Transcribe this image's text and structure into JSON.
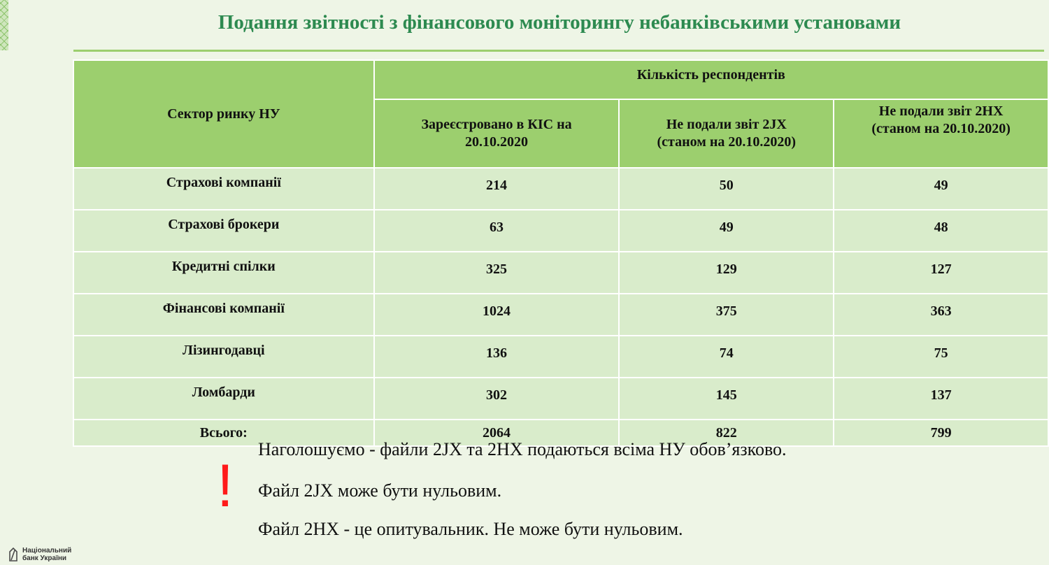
{
  "title": "Подання звітності з фінансового моніторингу небанківськими установами",
  "table": {
    "header": {
      "sector": "Сектор ринку НУ",
      "group": "Кількість респондентів",
      "col1_line1": "Зареєстровано в КІС на",
      "col1_line2": "20.10.2020",
      "col2_line1": "Не подали звіт 2JX",
      "col2_line2": "(станом на 20.10.2020)",
      "col3_line1": "Не подали звіт 2НХ",
      "col3_line2": "(станом на 20.10.2020)"
    },
    "rows": [
      {
        "sector": "Страхові компанії",
        "registered": "214",
        "no_2jx": "50",
        "no_2hx": "49"
      },
      {
        "sector": "Страхові брокери",
        "registered": "63",
        "no_2jx": "49",
        "no_2hx": "48"
      },
      {
        "sector": "Кредитні спілки",
        "registered": "325",
        "no_2jx": "129",
        "no_2hx": "127"
      },
      {
        "sector": "Фінансові компанії",
        "registered": "1024",
        "no_2jx": "375",
        "no_2hx": "363"
      },
      {
        "sector": "Лізингодавці",
        "registered": "136",
        "no_2jx": "74",
        "no_2hx": "75"
      },
      {
        "sector": "Ломбарди",
        "registered": "302",
        "no_2jx": "145",
        "no_2hx": "137"
      }
    ],
    "total": {
      "sector": "Всього:",
      "registered": "2064",
      "no_2jx": "822",
      "no_2hx": "799"
    }
  },
  "notes": {
    "mark": "!",
    "line1": "Наголошуємо - файли 2JX та 2НХ подаються всіма НУ обов’язково.",
    "line2": "Файл 2JX може бути нульовим.",
    "line3": "Файл 2НХ - це опитувальник. Не може бути нульовим."
  },
  "logo": {
    "line1": "Національний",
    "line2": "банк України",
    "icon": "nbu-logo-icon"
  },
  "colors": {
    "title": "#2d8a50",
    "header_bg": "#9ccf6e",
    "body_bg": "#d9eccb",
    "page_bg": "#eef5e6",
    "exclamation": "#ff1a1a"
  }
}
